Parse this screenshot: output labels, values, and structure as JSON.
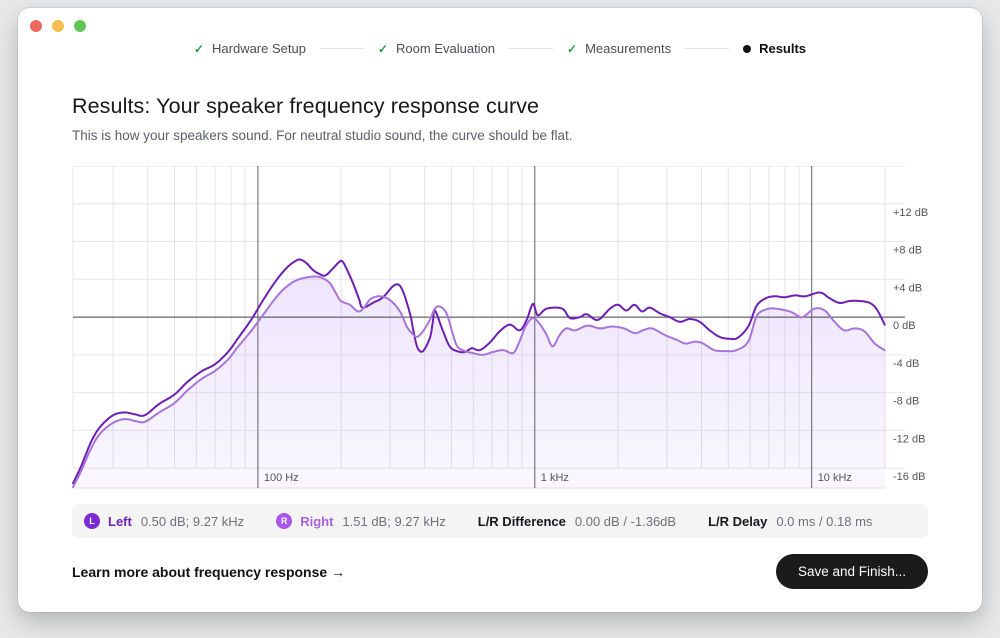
{
  "window": {
    "traffic_lights": {
      "close": "#ec6a5e",
      "minimize": "#f5bf4f",
      "zoom": "#61c554"
    }
  },
  "stepper": {
    "check_color": "#22a249",
    "current_dot_color": "#111214",
    "steps": [
      {
        "label": "Hardware Setup",
        "state": "done"
      },
      {
        "label": "Room Evaluation",
        "state": "done"
      },
      {
        "label": "Measurements",
        "state": "done"
      },
      {
        "label": "Results",
        "state": "current"
      }
    ]
  },
  "header": {
    "title": "Results: Your speaker frequency response curve",
    "subtitle": "This is how your speakers sound. For neutral studio sound, the curve should be flat."
  },
  "chart_data": {
    "type": "line",
    "x_scale": "log",
    "x_unit": "Hz",
    "y_unit": "dB",
    "x_range": [
      21.5,
      18400
    ],
    "y_range": [
      -18.1,
      16
    ],
    "grid": true,
    "zero_line": 0,
    "x_major_ticks": [
      {
        "value": 100,
        "label": "100 Hz"
      },
      {
        "value": 1000,
        "label": "1 kHz"
      },
      {
        "value": 10000,
        "label": "10 kHz"
      }
    ],
    "x_minor_ticks": [
      30,
      40,
      50,
      60,
      70,
      80,
      90,
      200,
      300,
      400,
      500,
      600,
      700,
      800,
      900,
      2000,
      3000,
      4000,
      5000,
      6000,
      7000,
      8000,
      9000
    ],
    "y_gridlines": [
      16,
      12,
      8,
      4,
      -4,
      -8,
      -12,
      -16
    ],
    "y_tick_labels": [
      {
        "value": 12,
        "label": "+12 dB"
      },
      {
        "value": 8,
        "label": "+8 dB"
      },
      {
        "value": 4,
        "label": "+4 dB"
      },
      {
        "value": 0,
        "label": "0 dB"
      },
      {
        "value": -4,
        "label": "-4 dB"
      },
      {
        "value": -8,
        "label": "-8 dB"
      },
      {
        "value": -12,
        "label": "-12 dB"
      },
      {
        "value": -16,
        "label": "-16 dB"
      }
    ],
    "fill": {
      "mode": "lower-envelope",
      "from": "rgba(124,58,237,0.13)",
      "to": "rgba(124,58,237,0.04)"
    },
    "series": [
      {
        "name": "Left",
        "color": "#6e1eb4",
        "points": [
          [
            21.5,
            -17.6
          ],
          [
            23,
            -15.8
          ],
          [
            25,
            -13.2
          ],
          [
            27,
            -11.6
          ],
          [
            30,
            -10.4
          ],
          [
            33,
            -10.1
          ],
          [
            36,
            -10.3
          ],
          [
            39,
            -10.4
          ],
          [
            44,
            -9.2
          ],
          [
            50,
            -8.2
          ],
          [
            56,
            -6.8
          ],
          [
            63,
            -5.7
          ],
          [
            70,
            -5.0
          ],
          [
            78,
            -3.7
          ],
          [
            85,
            -2.2
          ],
          [
            95,
            -0.2
          ],
          [
            106,
            2.1
          ],
          [
            118,
            4.1
          ],
          [
            128,
            5.3
          ],
          [
            136,
            5.9
          ],
          [
            142,
            6.1
          ],
          [
            150,
            5.7
          ],
          [
            158,
            5.0
          ],
          [
            166,
            4.6
          ],
          [
            175,
            4.4
          ],
          [
            186,
            5.1
          ],
          [
            196,
            5.8
          ],
          [
            202,
            5.9
          ],
          [
            210,
            5.0
          ],
          [
            222,
            3.4
          ],
          [
            232,
            1.9
          ],
          [
            239,
            1.0
          ],
          [
            260,
            1.5
          ],
          [
            283,
            2.1
          ],
          [
            312,
            3.4
          ],
          [
            331,
            3.0
          ],
          [
            354,
            0.4
          ],
          [
            366,
            -1.7
          ],
          [
            378,
            -3.3
          ],
          [
            395,
            -3.6
          ],
          [
            418,
            -2.2
          ],
          [
            428,
            -0.6
          ],
          [
            436,
            0.7
          ],
          [
            465,
            -1.4
          ],
          [
            493,
            -3.1
          ],
          [
            523,
            -3.6
          ],
          [
            559,
            -3.7
          ],
          [
            592,
            -3.3
          ],
          [
            633,
            -3.5
          ],
          [
            688,
            -2.7
          ],
          [
            748,
            -1.5
          ],
          [
            813,
            -0.8
          ],
          [
            883,
            -1.4
          ],
          [
            935,
            -0.3
          ],
          [
            985,
            1.4
          ],
          [
            1025,
            0.2
          ],
          [
            1105,
            0.9
          ],
          [
            1255,
            0.9
          ],
          [
            1340,
            -0.1
          ],
          [
            1455,
            0.0
          ],
          [
            1540,
            0.3
          ],
          [
            1690,
            -0.3
          ],
          [
            1870,
            0.9
          ],
          [
            2000,
            1.3
          ],
          [
            2140,
            0.7
          ],
          [
            2290,
            1.3
          ],
          [
            2440,
            0.6
          ],
          [
            2600,
            1.0
          ],
          [
            2830,
            0.4
          ],
          [
            3070,
            0.0
          ],
          [
            3340,
            -0.5
          ],
          [
            3630,
            -0.2
          ],
          [
            3940,
            -0.5
          ],
          [
            4280,
            -1.4
          ],
          [
            4650,
            -2.1
          ],
          [
            5050,
            -2.3
          ],
          [
            5400,
            -2.2
          ],
          [
            5900,
            -1.0
          ],
          [
            6330,
            1.2
          ],
          [
            6840,
            2.0
          ],
          [
            7340,
            2.2
          ],
          [
            7980,
            2.1
          ],
          [
            8700,
            2.3
          ],
          [
            9470,
            2.2
          ],
          [
            10700,
            2.6
          ],
          [
            11600,
            2.0
          ],
          [
            12600,
            1.5
          ],
          [
            13700,
            1.7
          ],
          [
            14900,
            1.7
          ],
          [
            16200,
            1.5
          ],
          [
            17200,
            0.8
          ],
          [
            18350,
            -0.8
          ]
        ]
      },
      {
        "name": "Right",
        "color": "#a873da",
        "points": [
          [
            21.5,
            -18.0
          ],
          [
            23,
            -16.3
          ],
          [
            25,
            -13.9
          ],
          [
            27,
            -12.3
          ],
          [
            30,
            -11.2
          ],
          [
            33,
            -10.8
          ],
          [
            36,
            -11.0
          ],
          [
            39,
            -11.1
          ],
          [
            44,
            -10.1
          ],
          [
            50,
            -9.1
          ],
          [
            56,
            -7.7
          ],
          [
            63,
            -6.5
          ],
          [
            70,
            -5.7
          ],
          [
            78,
            -4.5
          ],
          [
            85,
            -3.1
          ],
          [
            95,
            -1.4
          ],
          [
            106,
            0.5
          ],
          [
            118,
            2.3
          ],
          [
            128,
            3.3
          ],
          [
            138,
            3.9
          ],
          [
            150,
            4.2
          ],
          [
            162,
            4.3
          ],
          [
            172,
            4.1
          ],
          [
            182,
            3.6
          ],
          [
            190,
            2.7
          ],
          [
            198,
            1.8
          ],
          [
            206,
            1.5
          ],
          [
            215,
            1.3
          ],
          [
            230,
            0.6
          ],
          [
            242,
            1.0
          ],
          [
            255,
            1.9
          ],
          [
            276,
            2.2
          ],
          [
            300,
            1.8
          ],
          [
            326,
            0.6
          ],
          [
            345,
            -1.0
          ],
          [
            360,
            -1.7
          ],
          [
            375,
            -2.1
          ],
          [
            395,
            -1.5
          ],
          [
            418,
            -0.3
          ],
          [
            436,
            0.9
          ],
          [
            454,
            1.1
          ],
          [
            480,
            0.4
          ],
          [
            506,
            -1.8
          ],
          [
            525,
            -3.1
          ],
          [
            559,
            -3.6
          ],
          [
            596,
            -3.8
          ],
          [
            649,
            -4.0
          ],
          [
            706,
            -3.7
          ],
          [
            770,
            -3.5
          ],
          [
            836,
            -3.8
          ],
          [
            880,
            -2.6
          ],
          [
            930,
            -0.9
          ],
          [
            985,
            -0.1
          ],
          [
            1040,
            -0.7
          ],
          [
            1100,
            -1.8
          ],
          [
            1160,
            -3.1
          ],
          [
            1230,
            -1.9
          ],
          [
            1300,
            -1.2
          ],
          [
            1400,
            -1.4
          ],
          [
            1550,
            -0.9
          ],
          [
            1720,
            -1.2
          ],
          [
            1900,
            -1.0
          ],
          [
            2100,
            -1.2
          ],
          [
            2300,
            -1.7
          ],
          [
            2460,
            -1.4
          ],
          [
            2650,
            -1.2
          ],
          [
            2950,
            -1.9
          ],
          [
            3250,
            -2.4
          ],
          [
            3500,
            -2.8
          ],
          [
            3800,
            -2.6
          ],
          [
            4050,
            -2.8
          ],
          [
            4450,
            -3.5
          ],
          [
            4900,
            -3.6
          ],
          [
            5350,
            -3.5
          ],
          [
            5900,
            -2.6
          ],
          [
            6330,
            0.1
          ],
          [
            6840,
            0.8
          ],
          [
            7400,
            0.9
          ],
          [
            8320,
            0.6
          ],
          [
            8840,
            0.2
          ],
          [
            9300,
            0.0
          ],
          [
            10250,
            0.9
          ],
          [
            11150,
            0.7
          ],
          [
            12100,
            -0.5
          ],
          [
            13100,
            -1.4
          ],
          [
            14300,
            -1.2
          ],
          [
            15500,
            -1.5
          ],
          [
            16900,
            -2.8
          ],
          [
            18350,
            -3.5
          ]
        ]
      }
    ]
  },
  "legend_bar": {
    "left": {
      "badge": "L",
      "label": "Left",
      "value": "0.50 dB; 9.27 kHz",
      "badge_color": "#7a2ad2",
      "label_color": "#6d22b2"
    },
    "right": {
      "badge": "R",
      "label": "Right",
      "value": "1.51 dB; 9.27 kHz",
      "badge_color": "#a856ee",
      "label_color": "#a764dd"
    },
    "difference": {
      "label": "L/R Difference",
      "value": "0.00 dB / -1.36dB"
    },
    "delay": {
      "label": "L/R Delay",
      "value": "0.0 ms / 0.18 ms"
    }
  },
  "footer": {
    "link": "Learn more about frequency response →",
    "button": "Save and Finish..."
  }
}
